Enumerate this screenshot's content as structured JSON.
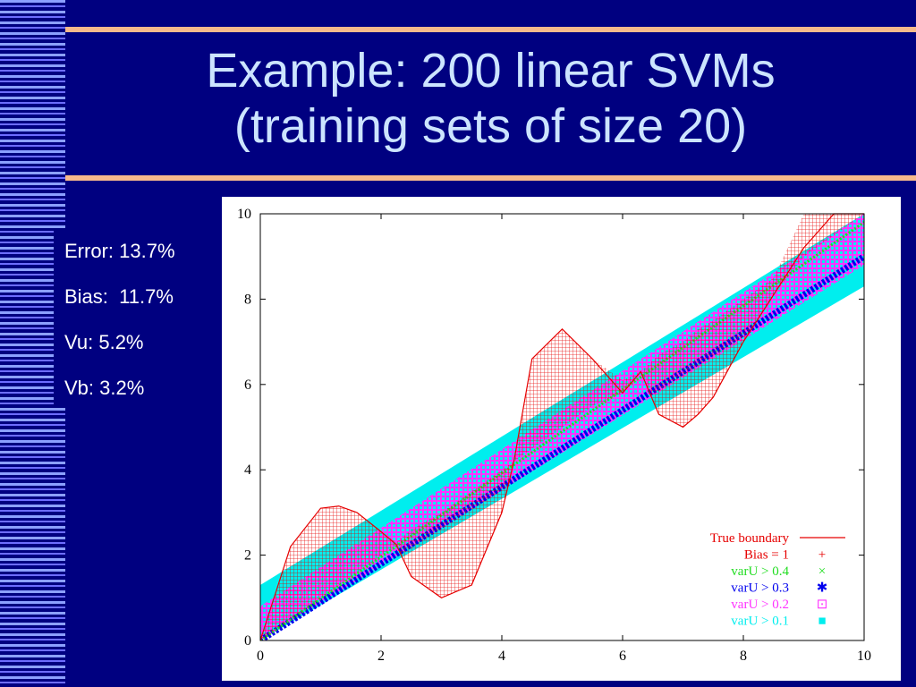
{
  "slide": {
    "title_line1": "Example: 200 linear SVMs",
    "title_line2": "(training sets of size 20)",
    "stats": [
      {
        "label": "Error:",
        "value": "13.7%"
      },
      {
        "label": "Bias:",
        "value": "11.7%"
      },
      {
        "label": "Vu:",
        "value": "5.2%"
      },
      {
        "label": "Vb:",
        "value": "3.2%"
      }
    ]
  },
  "colors": {
    "background": "#000080",
    "title": "#cce4ff",
    "rule": "#f6b98c",
    "true_boundary": "#e60000",
    "bias": "#e60000",
    "varU_04": "#22dd22",
    "varU_03": "#0000ee",
    "varU_02": "#ff33ff",
    "varU_01": "#00eeee"
  },
  "chart_data": {
    "type": "scatter",
    "xlim": [
      0,
      10
    ],
    "ylim": [
      0,
      10
    ],
    "x_ticks": [
      "0",
      "2",
      "4",
      "6",
      "8",
      "10"
    ],
    "y_ticks": [
      "0",
      "2",
      "4",
      "6",
      "8",
      "10"
    ],
    "legend_placement": "bottom-right",
    "legend": [
      {
        "label": "True boundary",
        "marker": "line",
        "color": "#e60000"
      },
      {
        "label": "Bias = 1",
        "marker": "+",
        "color": "#e60000"
      },
      {
        "label": "varU > 0.4",
        "marker": "×",
        "color": "#22dd22"
      },
      {
        "label": "varU > 0.3",
        "marker": "✱",
        "color": "#0000ee"
      },
      {
        "label": "varU > 0.2",
        "marker": "⊡",
        "color": "#ff33ff"
      },
      {
        "label": "varU > 0.1",
        "marker": "■",
        "color": "#00eeee"
      }
    ],
    "true_boundary": {
      "x": [
        0,
        0.5,
        1.0,
        1.3,
        1.6,
        2.0,
        2.25,
        2.5,
        3.0,
        3.5,
        4.0,
        4.2,
        4.5,
        5.0,
        5.5,
        6.0,
        6.3,
        6.6,
        7.0,
        7.25,
        7.5,
        8.0,
        8.5,
        9.0,
        9.5,
        10.0
      ],
      "y": [
        0.0,
        2.2,
        3.1,
        3.15,
        3.0,
        2.55,
        2.25,
        1.5,
        1.0,
        1.3,
        3.0,
        4.2,
        6.6,
        7.3,
        6.6,
        5.8,
        6.3,
        5.3,
        5.0,
        5.3,
        5.7,
        7.0,
        8.1,
        9.2,
        10.0,
        10.0
      ]
    },
    "bias_region": {
      "x": [
        0,
        0.5,
        1.0,
        1.3,
        1.6,
        2.0,
        2.25,
        2.5,
        3.0,
        3.5,
        4.0,
        4.2,
        4.5,
        5.0,
        5.5,
        6.0,
        6.3,
        6.6,
        7.0,
        7.25,
        7.5,
        8.0,
        8.5,
        9.0,
        9.5,
        10.0
      ],
      "upper": [
        0.05,
        2.2,
        3.1,
        3.15,
        3.0,
        2.55,
        2.3,
        2.6,
        3.0,
        3.5,
        4.0,
        4.2,
        6.6,
        7.3,
        6.6,
        6.1,
        6.3,
        6.7,
        7.0,
        7.3,
        7.5,
        8.0,
        8.5,
        10.0,
        10.0,
        10.0
      ],
      "lower": [
        0.0,
        0.5,
        1.0,
        1.3,
        1.6,
        2.0,
        2.25,
        1.5,
        1.0,
        1.3,
        3.0,
        4.2,
        4.5,
        5.0,
        5.5,
        5.8,
        6.3,
        5.3,
        5.0,
        5.3,
        5.7,
        7.0,
        8.1,
        9.0,
        9.5,
        10.0
      ]
    },
    "variance_bands": [
      {
        "label": "varU > 0.1",
        "center_x": [
          0,
          10
        ],
        "center_y": [
          0,
          9.6
        ],
        "half_width": 1.3
      },
      {
        "label": "varU > 0.2",
        "center_x": [
          0,
          10
        ],
        "center_y": [
          0,
          9.6
        ],
        "half_width": 0.8
      },
      {
        "label": "varU > 0.3",
        "center_x": [
          0,
          10
        ],
        "center_y": [
          0,
          9.0
        ],
        "half_width": 0.3
      },
      {
        "label": "varU > 0.4",
        "center_x": [
          0,
          10
        ],
        "center_y": [
          0,
          9.8
        ],
        "half_width": 0.1
      }
    ]
  }
}
